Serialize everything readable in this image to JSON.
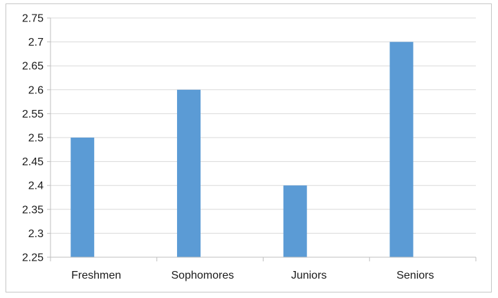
{
  "chart_data": {
    "type": "bar",
    "categories": [
      "Freshmen",
      "Sophomores",
      "Juniors",
      "Seniors"
    ],
    "series": [
      {
        "values": [
          2.5,
          2.6,
          2.4,
          2.7
        ]
      }
    ],
    "yticks": [
      "2.25",
      "2.3",
      "2.35",
      "2.4",
      "2.45",
      "2.5",
      "2.55",
      "2.6",
      "2.65",
      "2.7",
      "2.75"
    ],
    "ylim": [
      2.25,
      2.75
    ],
    "grid": true,
    "legend": "none",
    "bar_color": "#5b9bd5",
    "grid_color": "#d9d9d9",
    "axis_color": "#bfbfbf"
  }
}
